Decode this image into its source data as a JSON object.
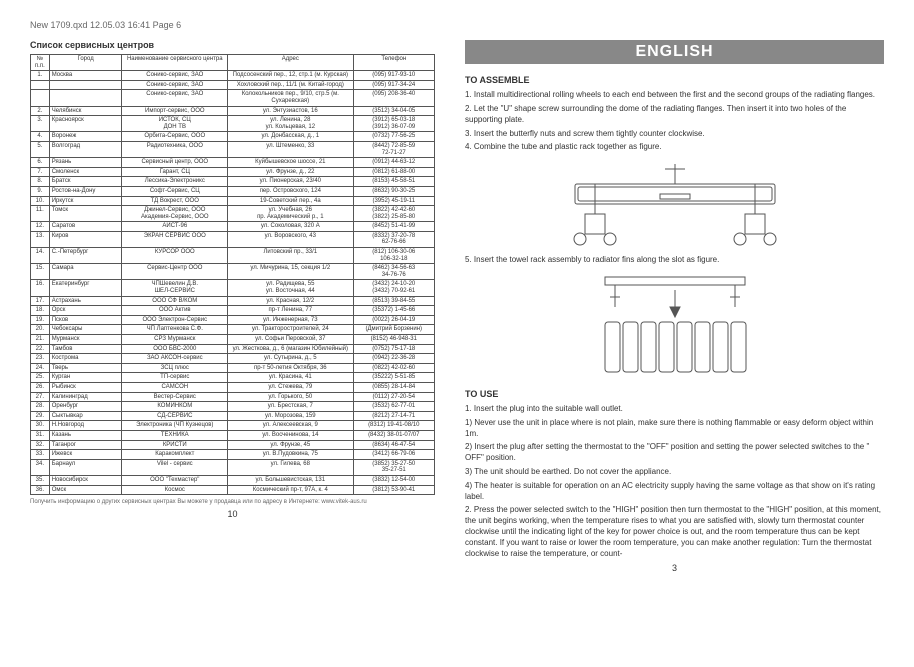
{
  "header": "New 1709.qxd   12.05.03   16:41   Page 6",
  "left": {
    "title": "Список сервисных центров",
    "columns": [
      "№ п.п.",
      "Город",
      "Наименование сервисного центра",
      "Адрес",
      "Телефон"
    ],
    "rows": [
      [
        "1.",
        "Москва",
        "Сонико-сервис, ЗАО",
        "Подсосенский пер., 12, стр.1 (м. Курская)",
        "(095) 917-93-10"
      ],
      [
        "",
        "",
        "Сонико-сервис, ЗАО",
        "Хохловский пер., 11/1 (м. Китай-город)",
        "(095) 917-34-24"
      ],
      [
        "",
        "",
        "Сонико-сервис, ЗАО",
        "Колокольников пер., 9/10, стр.5 (м. Сухаревская)",
        "(095) 208-36-40"
      ],
      [
        "2.",
        "Челябинск",
        "Импорт-сервис, ООО",
        "ул. Энтузиастов, 16",
        "(3512) 34-04-05"
      ],
      [
        "3.",
        "Красноярск",
        "ИСТОК, СЦ\nДОН ТВ",
        "ул. Ленина, 28\nул. Кольцевая, 12",
        "(3912) 65-03-18\n(3912) 36-07-09"
      ],
      [
        "4.",
        "Воронеж",
        "Орбита-Сервис, ООО",
        "ул. Донбасская, д., 1",
        "(0732) 77-56-25"
      ],
      [
        "5.",
        "Волгоград",
        "Радиотехника, ООО",
        "ул. Штеменко, 33",
        "(8442) 72-85-59\n72-71-27"
      ],
      [
        "6.",
        "Рязань",
        "Сервисный центр, ООО",
        "Куйбышевское шоссе, 21",
        "(0912) 44-63-12"
      ],
      [
        "7.",
        "Смоленск",
        "Гарант, СЦ",
        "ул. Фрунзе, д., 22",
        "(0812) 61-88-00"
      ],
      [
        "8.",
        "Братск",
        "Лессика-Электроникс",
        "ул. Пионерская, 23/40",
        "(8153) 45-58-51"
      ],
      [
        "9.",
        "Ростов-на-Дону",
        "Софт-Сервис, СЦ",
        "пер. Островского, 124",
        "(8632) 90-30-25"
      ],
      [
        "10.",
        "Иркутск",
        "ТД Вокрест, ООО",
        "19-Советский пер., 4а",
        "(3952) 45-19-11"
      ],
      [
        "11.",
        "Томск",
        "Джинел-Сервис, ООО\nАкадемия-Сервис, ООО",
        "ул. Учебная, 26\nпр. Академический р., 1",
        "(3822) 42-42-60\n(3822) 25-85-80"
      ],
      [
        "12.",
        "Саратов",
        "АИСТ-96",
        "ул. Соколовая, 320 А",
        "(8452) 51-41-99"
      ],
      [
        "13.",
        "Киров",
        "ЭКРАН СЕРВИС ООО",
        "ул. Воровского, 43",
        "(8332) 37-20-78\n62-76-66"
      ],
      [
        "14.",
        "С.-Петербург",
        "КУРСОР ООО",
        "Литовский пр., 33/1",
        "(812) 106-30-06\n106-32-18"
      ],
      [
        "15.",
        "Самара",
        "Сервис-Центр ООО",
        "ул. Мичурина, 15, секция 1/2",
        "(8462) 34-56-63\n34-76-76"
      ],
      [
        "16.",
        "Екатеринбург",
        "ЧПШевелин Д.В.\nШЕЛ-СЕРВИС",
        "ул. Радищева, 55\nул. Восточная, 44",
        "(3432) 24-10-20\n(3432) 70-92-61"
      ],
      [
        "17.",
        "Астрахань",
        "ООО СФ В/КОМ",
        "ул. Красная, 12/2",
        "(8513) 39-84-55"
      ],
      [
        "18.",
        "Орск",
        "ООО Актив",
        "пр-т Ленина, 77",
        "(35372) 1-45-66"
      ],
      [
        "19.",
        "Псков",
        "ООО Электрон-Сервис",
        "ул. Инженерная, 73",
        "(0022) 26-04-19"
      ],
      [
        "20.",
        "Чебоксары",
        "ЧП Лаптенкова С.Ф.",
        "ул. Тракторостроителей, 24",
        "(Дмитрий Борзенин)"
      ],
      [
        "21.",
        "Мурманск",
        "СРЗ Мурманск",
        "ул. Софьи Перовской, 37",
        "(8152) 46-948-31"
      ],
      [
        "22.",
        "Тамбов",
        "ООО БВС-2000",
        "ул. Жесткова, д., 6 (магазин Юбилейный)",
        "(0752) 75-17-18"
      ],
      [
        "23.",
        "Кострома",
        "ЗАО АКСОН-сервис",
        "ул. Сутырина, д., 5",
        "(0942) 22-36-28"
      ],
      [
        "24.",
        "Тверь",
        "ЗСЦ плюс",
        "пр-т 50-летия Октября, 36",
        "(0822) 42-02-60"
      ],
      [
        "25.",
        "Курган",
        "ТП-сервис",
        "ул. Красина, 41",
        "(35222) 5-51-85"
      ],
      [
        "26.",
        "Рыбинск",
        "CAMCOH",
        "ул. Стежева, 79",
        "(0855) 28-14-84"
      ],
      [
        "27.",
        "Калининград",
        "Вестер-Сервис",
        "ул. Горького, 50",
        "(0112) 27-20-54"
      ],
      [
        "28.",
        "Оренбург",
        "КОМИНКОМ",
        "ул. Брестская, 7",
        "(3532) 62-77-01"
      ],
      [
        "29.",
        "Сыктывкар",
        "СД-СЕРВИС",
        "ул. Морозова, 159",
        "(8212) 27-14-71"
      ],
      [
        "30.",
        "Н.Новгород",
        "Электроника (ЧП Кузнецов)",
        "ул. Алексеевская, 9",
        "(8312) 19-41-08/10"
      ],
      [
        "31.",
        "Казань",
        "ТЕХНИКА",
        "ул. Восченинова, 14",
        "(8432) 38-01-07/07"
      ],
      [
        "32.",
        "Таганрог",
        "КРИСТИ",
        "ул. Фрунзе, 45",
        "(8634) 46-47-54"
      ],
      [
        "33.",
        "Ижевск",
        "Каракомплект",
        "ул. В.Пудовкина, 75",
        "(3412) 66-79-06"
      ],
      [
        "34.",
        "Барнаул",
        "Vilel - сервис",
        "ул. Гилева, 68",
        "(3852) 35-27-50\n35-27-51"
      ],
      [
        "35.",
        "Новосибирск",
        "ООО \"Техмастер\"",
        "ул. Большевистская, 131",
        "(3832) 12-54-00"
      ],
      [
        "36.",
        "Омск",
        "Космос",
        "Космический пр-т, 97А, к. 4",
        "(3812) 53-90-41"
      ]
    ],
    "footnote": "Получить информацию о других сервисных центрах Вы можете у продавца или по адресу в Интернете: www.vitek-aus.ru",
    "page_num": "10"
  },
  "right": {
    "banner": "ENGLISH",
    "assemble_title": "TO ASSEMBLE",
    "assemble_items": [
      "1. Install multidirectional rolling wheels to each end between the first and the second groups of the radiating flanges.",
      "2. Let the \"U\" shape screw surrounding the dome of the radiating flanges. Then insert it into two holes of the supporting plate.",
      "3. Insert the butterfly nuts and screw them tightly counter clockwise.",
      "4. Combine the tube and plastic rack together as figure."
    ],
    "assemble_item5": "5. Insert the towel rack assembly to radiator fins along the slot as figure.",
    "use_title": "TO USE",
    "use_items": [
      "1. Insert the plug into the suitable wall outlet.",
      "1) Never use the unit in place where is not plain, make sure there is nothing flammable or easy deform object within 1m.",
      "2) Insert the plug after setting the thermostat to the \"OFF\" position and setting the power selected switches to the \" OFF\" position.",
      "3) The unit should be earthed. Do not cover the appliance.",
      "4) The heater is suitable for operation on an AC electricity supply having the same voltage as that show on it's rating label.",
      "2. Press the power selected switch to the \"HIGH\" position then turn thermostat to the \"HIGH\" position, at this moment, the unit begins working, when the temperature rises to what you are satisfied with, slowly turn thermostat counter clockwise until the indicating light of the key for power choice is out, and the room temperature thus can be kept constant. If you want to raise or lower the room temperature, you can make another regulation: Turn the thermostat clockwise to raise the temperature, or count-"
    ],
    "page_num": "3"
  }
}
